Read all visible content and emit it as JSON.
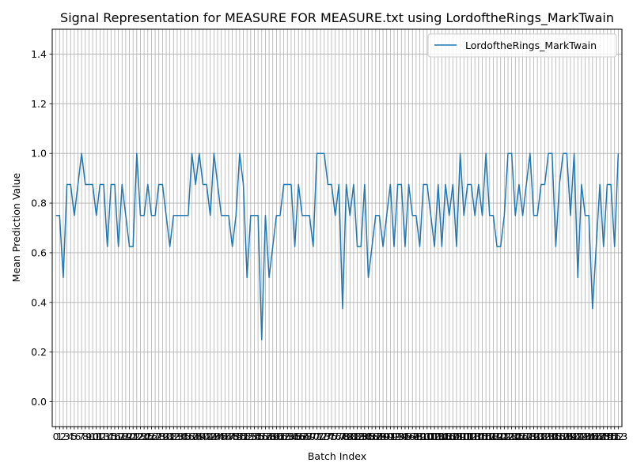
{
  "chart_data": {
    "type": "line",
    "title": "Signal Representation for MEASURE FOR MEASURE.txt using LordoftheRings_MarkTwain",
    "xlabel": "Batch Index",
    "ylabel": "Mean Prediction Value",
    "xlim": [
      -1,
      154
    ],
    "ylim": [
      -0.1,
      1.5
    ],
    "yticks": [
      0.0,
      0.2,
      0.4,
      0.6,
      0.8,
      1.0,
      1.2,
      1.4
    ],
    "ytick_labels": [
      "0.0",
      "0.2",
      "0.4",
      "0.6",
      "0.8",
      "1.0",
      "1.2",
      "1.4"
    ],
    "grid": true,
    "legend_position": "top-right",
    "colors": {
      "series": "#1f77b4",
      "grid": "#b0b0b0"
    },
    "series": [
      {
        "name": "LordoftheRings_MarkTwain",
        "x": [
          0,
          1,
          2,
          3,
          4,
          5,
          6,
          7,
          8,
          9,
          10,
          11,
          12,
          13,
          14,
          15,
          16,
          17,
          18,
          19,
          20,
          21,
          22,
          23,
          24,
          25,
          26,
          27,
          28,
          29,
          30,
          31,
          32,
          33,
          34,
          35,
          36,
          37,
          38,
          39,
          40,
          41,
          42,
          43,
          44,
          45,
          46,
          47,
          48,
          49,
          50,
          51,
          52,
          53,
          54,
          55,
          56,
          57,
          58,
          59,
          60,
          61,
          62,
          63,
          64,
          65,
          66,
          67,
          68,
          69,
          70,
          71,
          72,
          73,
          74,
          75,
          76,
          77,
          78,
          79,
          80,
          81,
          82,
          83,
          84,
          85,
          86,
          87,
          88,
          89,
          90,
          91,
          92,
          93,
          94,
          95,
          96,
          97,
          98,
          99,
          100,
          101,
          102,
          103,
          104,
          105,
          106,
          107,
          108,
          109,
          110,
          111,
          112,
          113,
          114,
          115,
          116,
          117,
          118,
          119,
          120,
          121,
          122,
          123,
          124,
          125,
          126,
          127,
          128,
          129,
          130,
          131,
          132,
          133,
          134,
          135,
          136,
          137,
          138,
          139,
          140,
          141,
          142,
          143,
          144,
          145,
          146,
          147,
          148,
          149,
          150,
          151,
          152,
          153
        ],
        "y": [
          0.75,
          0.75,
          0.5,
          0.875,
          0.875,
          0.75,
          0.875,
          1.0,
          0.875,
          0.875,
          0.875,
          0.75,
          0.875,
          0.875,
          0.625,
          0.875,
          0.875,
          0.625,
          0.875,
          0.75,
          0.625,
          0.625,
          1.0,
          0.75,
          0.75,
          0.875,
          0.75,
          0.75,
          0.875,
          0.875,
          0.75,
          0.625,
          0.75,
          0.75,
          0.75,
          0.75,
          0.75,
          1.0,
          0.875,
          1.0,
          0.875,
          0.875,
          0.75,
          1.0,
          0.875,
          0.75,
          0.75,
          0.75,
          0.625,
          0.75,
          1.0,
          0.875,
          0.5,
          0.75,
          0.75,
          0.75,
          0.25,
          0.75,
          0.5,
          0.625,
          0.75,
          0.75,
          0.875,
          0.875,
          0.875,
          0.625,
          0.875,
          0.75,
          0.75,
          0.75,
          0.625,
          1.0,
          1.0,
          1.0,
          0.875,
          0.875,
          0.75,
          0.875,
          0.375,
          0.875,
          0.75,
          0.875,
          0.625,
          0.625,
          0.875,
          0.5,
          0.625,
          0.75,
          0.75,
          0.625,
          0.75,
          0.875,
          0.625,
          0.875,
          0.875,
          0.625,
          0.875,
          0.75,
          0.75,
          0.625,
          0.875,
          0.875,
          0.75,
          0.625,
          0.875,
          0.625,
          0.875,
          0.75,
          0.875,
          0.625,
          1.0,
          0.75,
          0.875,
          0.875,
          0.75,
          0.875,
          0.75,
          1.0,
          0.75,
          0.75,
          0.625,
          0.625,
          0.75,
          1.0,
          1.0,
          0.75,
          0.875,
          0.75,
          0.875,
          1.0,
          0.75,
          0.75,
          0.875,
          0.875,
          1.0,
          1.0,
          0.625,
          0.875,
          1.0,
          1.0,
          0.75,
          1.0,
          0.5,
          0.875,
          0.75,
          0.75,
          0.375,
          0.625,
          0.875,
          0.625,
          0.875,
          0.875,
          0.625,
          1.0
        ]
      }
    ]
  }
}
